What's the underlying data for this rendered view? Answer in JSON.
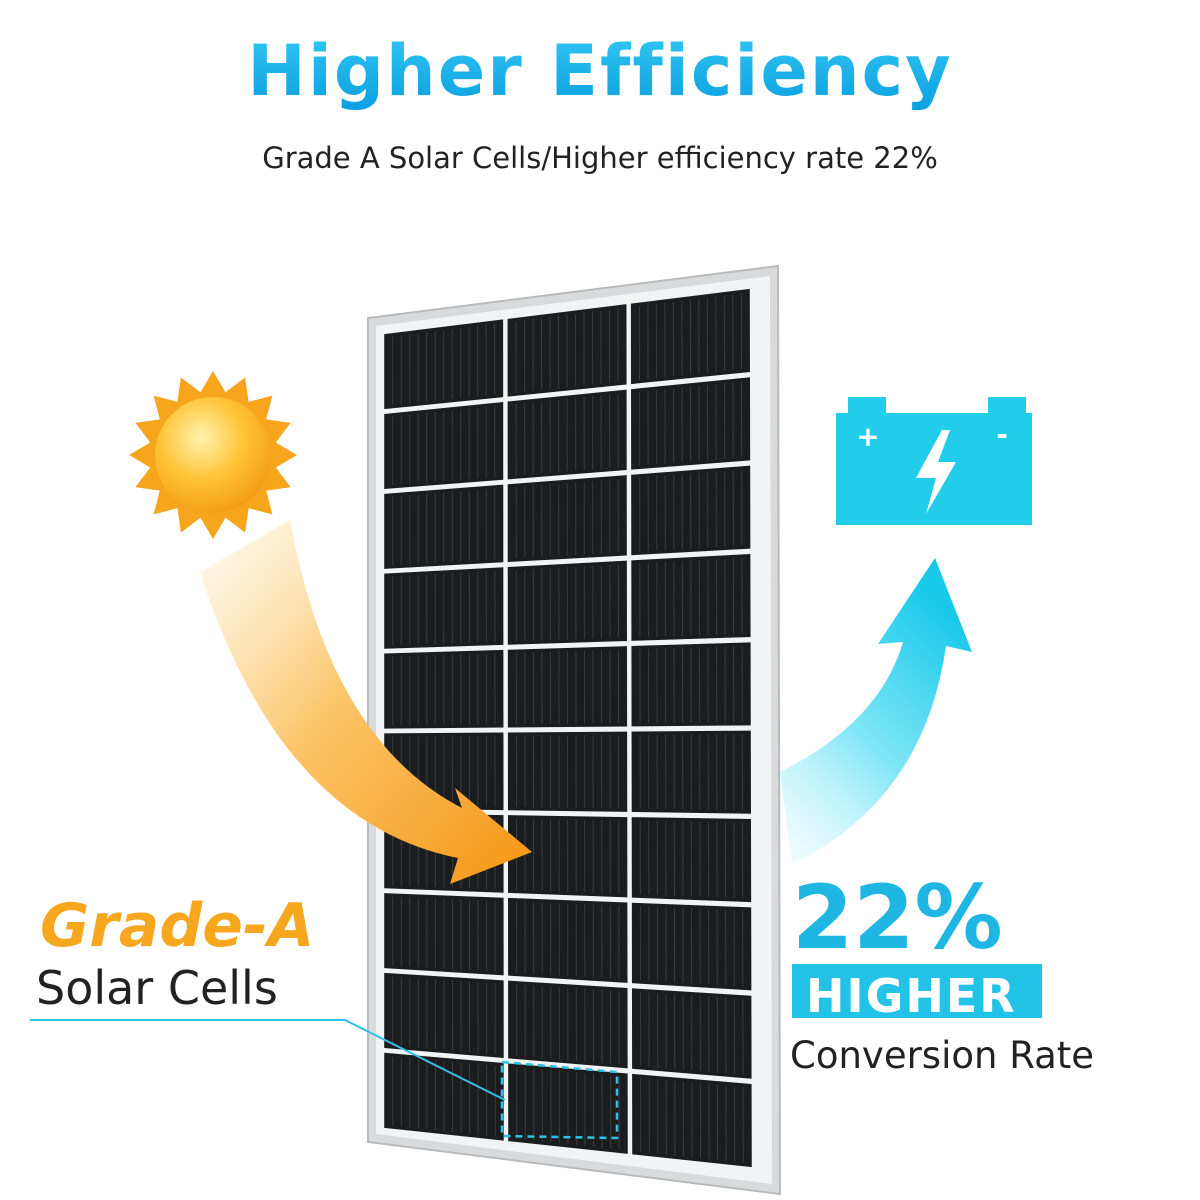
{
  "header": {
    "title": "Higher Efficiency",
    "subtitle": "Grade A Solar Cells/Higher efficiency rate 22%"
  },
  "left_callout": {
    "highlight": "Grade-A",
    "label": "Solar Cells"
  },
  "battery": {
    "plus": "+",
    "minus": "-"
  },
  "right_callout": {
    "figure": "22%",
    "badge": "HIGHER",
    "label": "Conversion Rate"
  }
}
